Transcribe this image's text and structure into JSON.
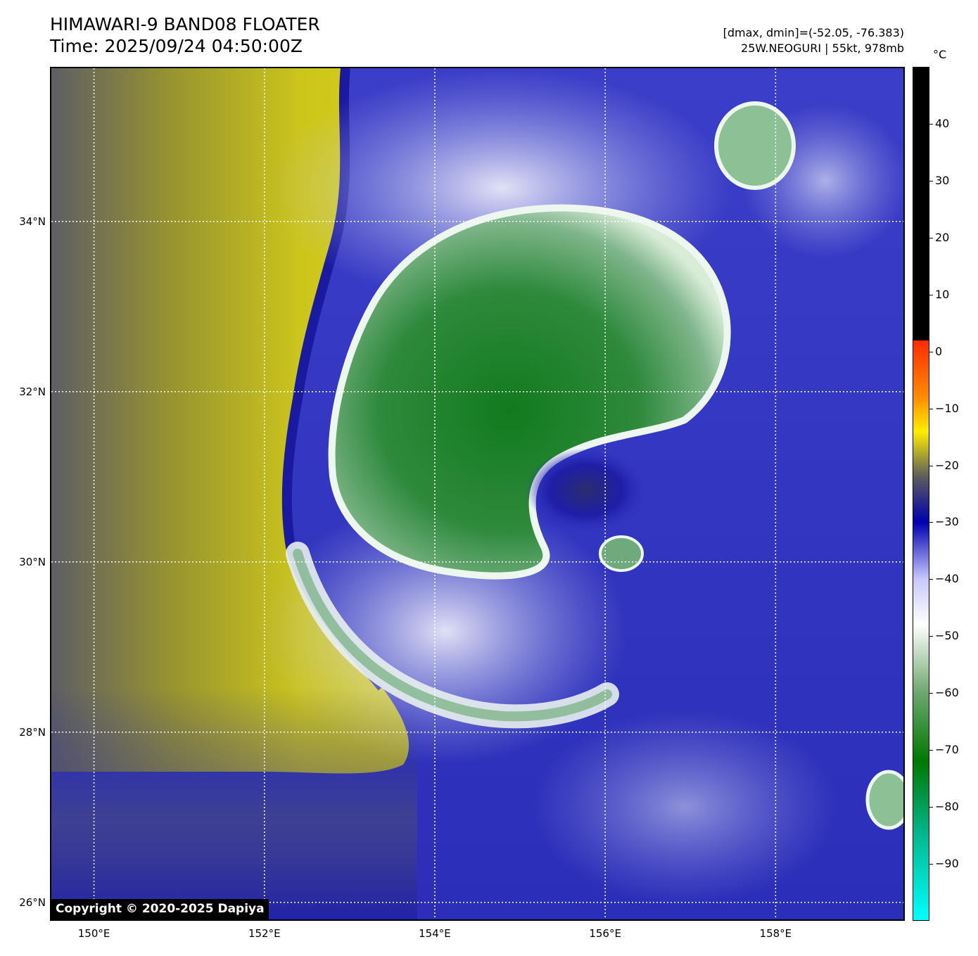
{
  "header": {
    "title_line1": "HIMAWARI-9 BAND08 FLOATER",
    "title_line2": "Time: 2025/09/24 04:50:00Z",
    "info_line1": "[dmax, dmin]=(-52.05, -76.383)",
    "info_line2": "25W.NEOGURI | 55kt, 978mb"
  },
  "map": {
    "copyright": "Copyright © 2020-2025 Dapiya",
    "lat_range": [
      25.8,
      35.8
    ],
    "lon_range": [
      149.5,
      159.5
    ],
    "lat_ticks": [
      {
        "value": 26,
        "label": "26°N"
      },
      {
        "value": 28,
        "label": "28°N"
      },
      {
        "value": 30,
        "label": "30°N"
      },
      {
        "value": 32,
        "label": "32°N"
      },
      {
        "value": 34,
        "label": "34°N"
      }
    ],
    "lon_ticks": [
      {
        "value": 150,
        "label": "150°E"
      },
      {
        "value": 152,
        "label": "152°E"
      },
      {
        "value": 154,
        "label": "154°E"
      },
      {
        "value": 156,
        "label": "156°E"
      },
      {
        "value": 158,
        "label": "158°E"
      }
    ],
    "colors": {
      "dry_yellow": "#c8c21e",
      "dry_gray": "#6c6a58",
      "moist_blue": "#3a3ec0",
      "deep_blue": "#1e1ea8",
      "light_blue": "#b6b8ea",
      "cold_green": "#2e8a3c",
      "core_green": "#127a1e"
    }
  },
  "colorbar": {
    "unit": "°C",
    "range": [
      -100,
      50
    ],
    "ticks": [
      {
        "value": 40,
        "label": "40"
      },
      {
        "value": 30,
        "label": "30"
      },
      {
        "value": 20,
        "label": "20"
      },
      {
        "value": 10,
        "label": "10"
      },
      {
        "value": 0,
        "label": "0"
      },
      {
        "value": -10,
        "label": "−10"
      },
      {
        "value": -20,
        "label": "−20"
      },
      {
        "value": -30,
        "label": "−30"
      },
      {
        "value": -40,
        "label": "−40"
      },
      {
        "value": -50,
        "label": "−50"
      },
      {
        "value": -60,
        "label": "−60"
      },
      {
        "value": -70,
        "label": "−70"
      },
      {
        "value": -80,
        "label": "−80"
      },
      {
        "value": -90,
        "label": "−90"
      }
    ],
    "stops": [
      {
        "value": 50,
        "color": "#000000"
      },
      {
        "value": 2,
        "color": "#000000"
      },
      {
        "value": 2,
        "color": "#ff2a00"
      },
      {
        "value": -8,
        "color": "#ff8c00"
      },
      {
        "value": -14,
        "color": "#ffee00"
      },
      {
        "value": -22,
        "color": "#5c5c5c"
      },
      {
        "value": -30,
        "color": "#0000b0"
      },
      {
        "value": -40,
        "color": "#c8c8ff"
      },
      {
        "value": -48,
        "color": "#ffffff"
      },
      {
        "value": -60,
        "color": "#6ca86c"
      },
      {
        "value": -72,
        "color": "#007800"
      },
      {
        "value": -85,
        "color": "#00b890"
      },
      {
        "value": -100,
        "color": "#00ffff"
      }
    ]
  }
}
